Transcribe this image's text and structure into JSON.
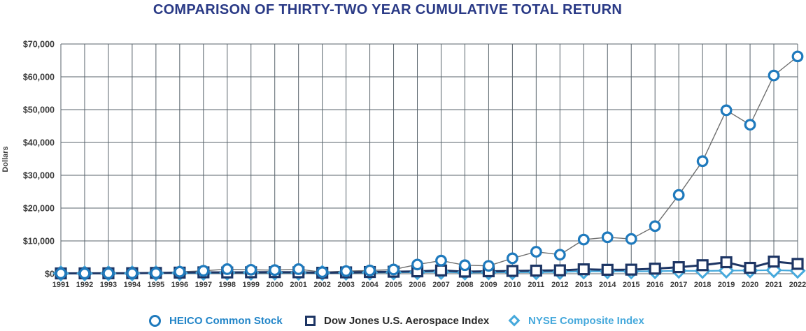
{
  "title": "COMPARISON OF THIRTY-TWO YEAR CUMULATIVE TOTAL RETURN",
  "colors": {
    "title_text": "#2a3a86",
    "grid": "#58636b",
    "axis_label_text": "#3b3b3b",
    "heico_line": "#6f6f6f",
    "heico_marker": "#1f7abd",
    "heico_legend_text": "#2285c8",
    "aerospace_line": "#1d3564",
    "aerospace_marker": "#1d3564",
    "aerospace_legend_text": "#2a2a2a",
    "nyse_line": "#46a9dc",
    "nyse_marker": "#46a9dc",
    "background": "#ffffff"
  },
  "chart_data": {
    "type": "line",
    "title": "COMPARISON OF THIRTY-TWO YEAR CUMULATIVE TOTAL RETURN",
    "xlabel": "",
    "ylabel": "Dollars",
    "ylim": [
      0,
      70000
    ],
    "ytick_interval": 10000,
    "ytick_labels": [
      "$0",
      "$10,000",
      "$20,000",
      "$30,000",
      "$40,000",
      "$50,000",
      "$60,000",
      "$70,000"
    ],
    "grid": true,
    "legend_position": "bottom",
    "x": [
      "1991",
      "1992",
      "1993",
      "1994",
      "1995",
      "1996",
      "1997",
      "1998",
      "1999",
      "2000",
      "2001",
      "2002",
      "2003",
      "2004",
      "2005",
      "2006",
      "2007",
      "2008",
      "2009",
      "2010",
      "2011",
      "2012",
      "2013",
      "2014",
      "2015",
      "2016",
      "2017",
      "2018",
      "2019",
      "2020",
      "2021",
      "2022"
    ],
    "series": [
      {
        "name": "HEICO Common Stock",
        "marker": "circle",
        "line_color": "#6f6f6f",
        "marker_color": "#1f7abd",
        "line_width": 1.4,
        "values": [
          100,
          95,
          110,
          140,
          200,
          600,
          900,
          1400,
          1200,
          1100,
          1400,
          500,
          800,
          1000,
          1300,
          2800,
          4000,
          2600,
          2400,
          4700,
          6700,
          5800,
          10400,
          11100,
          10600,
          14500,
          24000,
          34300,
          49800,
          45400,
          60400,
          66200
        ]
      },
      {
        "name": "Dow Jones U.S. Aerospace Index",
        "marker": "square",
        "line_color": "#1d3564",
        "marker_color": "#1d3564",
        "line_width": 3,
        "values": [
          100,
          120,
          140,
          170,
          250,
          340,
          430,
          390,
          440,
          490,
          440,
          300,
          420,
          520,
          620,
          720,
          1000,
          650,
          750,
          850,
          950,
          1050,
          1350,
          1200,
          1250,
          1550,
          2000,
          2600,
          3500,
          1800,
          3700,
          3000
        ]
      },
      {
        "name": "NYSE Composite Index",
        "marker": "diamond",
        "line_color": "#46a9dc",
        "marker_color": "#46a9dc",
        "line_width": 2.2,
        "values": [
          100,
          110,
          130,
          130,
          170,
          210,
          270,
          300,
          330,
          340,
          300,
          250,
          320,
          380,
          420,
          480,
          560,
          380,
          430,
          480,
          480,
          550,
          700,
          750,
          720,
          760,
          900,
          850,
          950,
          1000,
          1100,
          900
        ]
      }
    ]
  },
  "legend": {
    "heico_label": "HEICO Common Stock",
    "aerospace_label": "Dow Jones U.S. Aerospace Index",
    "nyse_label": "NYSE Composite Index"
  }
}
